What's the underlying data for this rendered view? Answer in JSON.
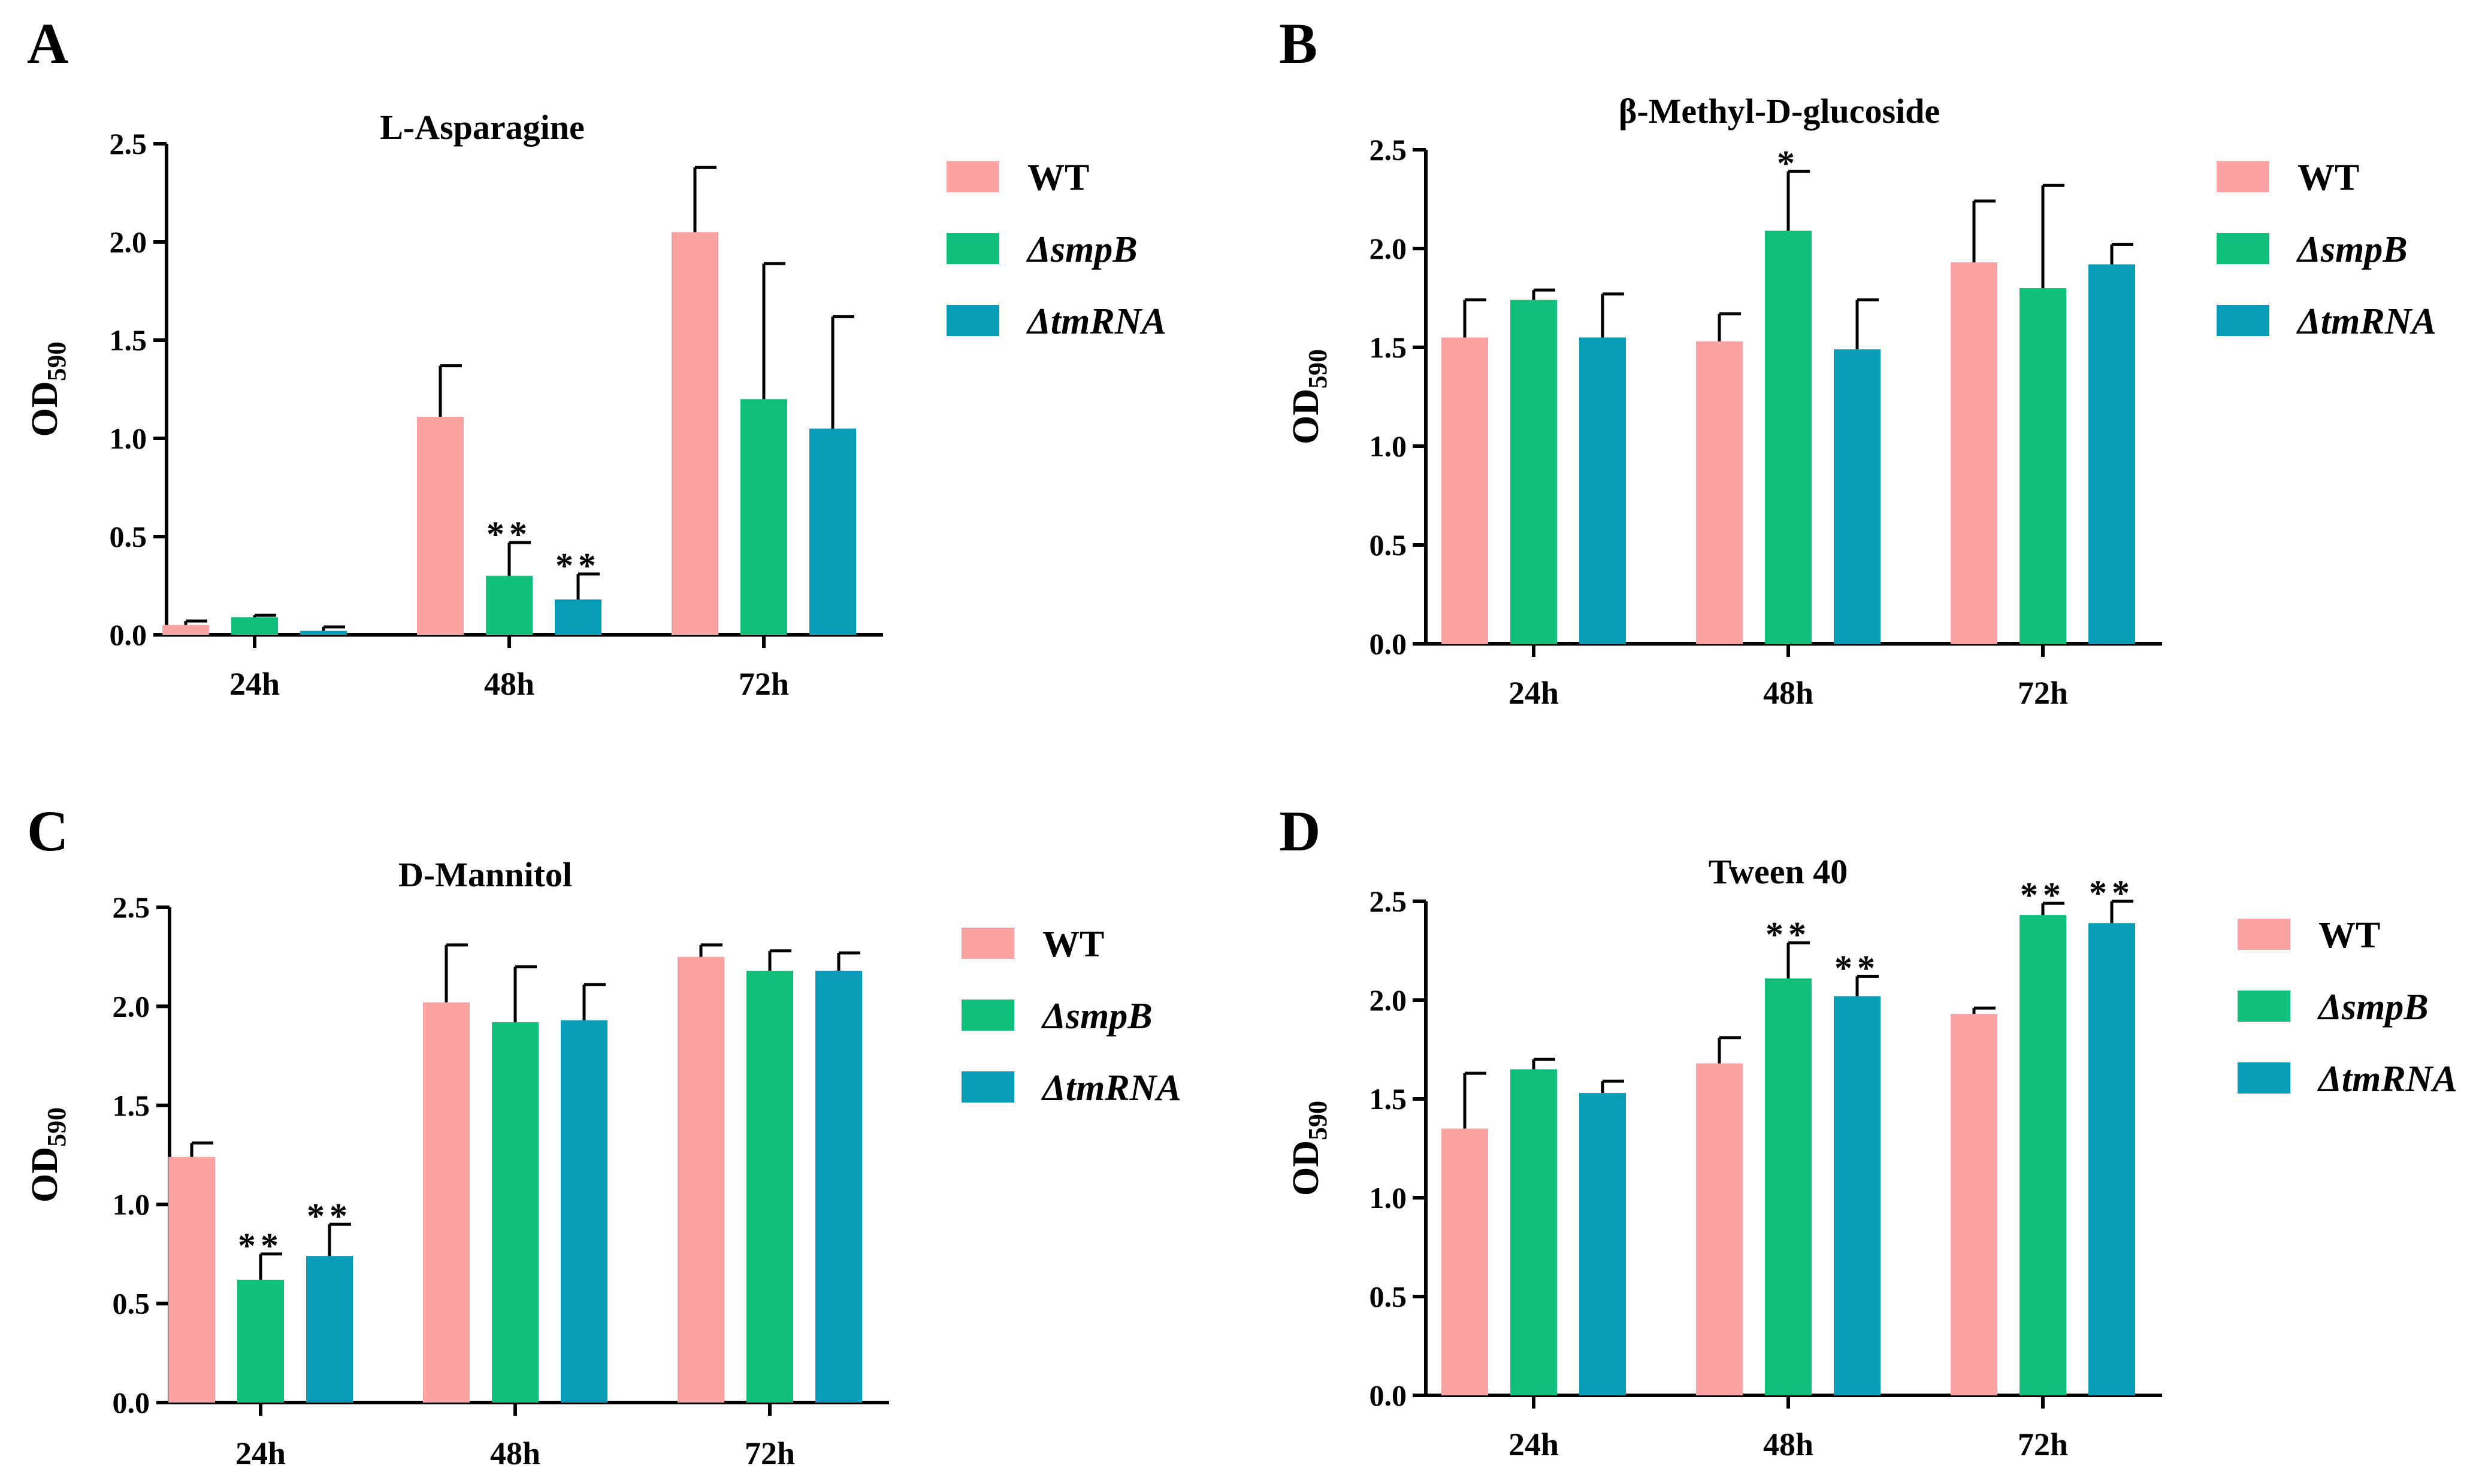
{
  "colors": {
    "WT": "#fba3a3",
    "smpB": "#10c07a",
    "tmRNA": "#079db7"
  },
  "legend_labels": [
    "WT",
    "ΔsmpB",
    "ΔtmRNA"
  ],
  "chart_data": [
    {
      "panel": "A",
      "type": "bar",
      "title": "L-Asparagine",
      "ylabel_main": "OD",
      "ylabel_sub": "590",
      "ylim": [
        0,
        2.5
      ],
      "yticks": [
        "0.0",
        "0.5",
        "1.0",
        "1.5",
        "2.0",
        "2.5"
      ],
      "categories": [
        "24h",
        "48h",
        "72h"
      ],
      "series": [
        {
          "name": "WT",
          "values": [
            0.05,
            1.11,
            2.05
          ],
          "errors": [
            0.02,
            0.26,
            0.33
          ],
          "sig": [
            "",
            "",
            ""
          ]
        },
        {
          "name": "ΔsmpB",
          "values": [
            0.09,
            0.3,
            1.2
          ],
          "errors": [
            0.01,
            0.17,
            0.69
          ],
          "sig": [
            "",
            "**",
            ""
          ]
        },
        {
          "name": "ΔtmRNA",
          "values": [
            0.02,
            0.18,
            1.05
          ],
          "errors": [
            0.02,
            0.13,
            0.57
          ],
          "sig": [
            "",
            "**",
            ""
          ]
        }
      ]
    },
    {
      "panel": "B",
      "type": "bar",
      "title": "β-Methyl-D-glucoside",
      "ylabel_main": "OD",
      "ylabel_sub": "590",
      "ylim": [
        0,
        2.5
      ],
      "yticks": [
        "0.0",
        "0.5",
        "1.0",
        "1.5",
        "2.0",
        "2.5"
      ],
      "categories": [
        "24h",
        "48h",
        "72h"
      ],
      "series": [
        {
          "name": "WT",
          "values": [
            1.55,
            1.53,
            1.93
          ],
          "errors": [
            0.19,
            0.14,
            0.31
          ],
          "sig": [
            "",
            "",
            ""
          ]
        },
        {
          "name": "ΔsmpB",
          "values": [
            1.74,
            2.09,
            1.8
          ],
          "errors": [
            0.05,
            0.3,
            0.52
          ],
          "sig": [
            "",
            "*",
            ""
          ]
        },
        {
          "name": "ΔtmRNA",
          "values": [
            1.55,
            1.49,
            1.92
          ],
          "errors": [
            0.22,
            0.25,
            0.1
          ],
          "sig": [
            "",
            "",
            ""
          ]
        }
      ]
    },
    {
      "panel": "C",
      "type": "bar",
      "title": "D-Mannitol",
      "ylabel_main": "OD",
      "ylabel_sub": "590",
      "ylim": [
        0,
        2.5
      ],
      "yticks": [
        "0.0",
        "0.5",
        "1.0",
        "1.5",
        "2.0",
        "2.5"
      ],
      "categories": [
        "24h",
        "48h",
        "72h"
      ],
      "series": [
        {
          "name": "WT",
          "values": [
            1.24,
            2.02,
            2.25
          ],
          "errors": [
            0.07,
            0.29,
            0.06
          ],
          "sig": [
            "",
            "",
            ""
          ]
        },
        {
          "name": "ΔsmpB",
          "values": [
            0.62,
            1.92,
            2.18
          ],
          "errors": [
            0.13,
            0.28,
            0.1
          ],
          "sig": [
            "**",
            "",
            ""
          ]
        },
        {
          "name": "ΔtmRNA",
          "values": [
            0.74,
            1.93,
            2.18
          ],
          "errors": [
            0.16,
            0.18,
            0.09
          ],
          "sig": [
            "**",
            "",
            ""
          ]
        }
      ]
    },
    {
      "panel": "D",
      "type": "bar",
      "title": "Tween 40",
      "ylabel_main": "OD",
      "ylabel_sub": "590",
      "ylim": [
        0,
        2.5
      ],
      "yticks": [
        "0.0",
        "0.5",
        "1.0",
        "1.5",
        "2.0",
        "2.5"
      ],
      "categories": [
        "24h",
        "48h",
        "72h"
      ],
      "series": [
        {
          "name": "WT",
          "values": [
            1.35,
            1.68,
            1.93
          ],
          "errors": [
            0.28,
            0.13,
            0.03
          ],
          "sig": [
            "",
            "",
            ""
          ]
        },
        {
          "name": "ΔsmpB",
          "values": [
            1.65,
            2.11,
            2.43
          ],
          "errors": [
            0.05,
            0.18,
            0.06
          ],
          "sig": [
            "",
            "**",
            "**"
          ]
        },
        {
          "name": "ΔtmRNA",
          "values": [
            1.53,
            2.02,
            2.39
          ],
          "errors": [
            0.06,
            0.1,
            0.11
          ],
          "sig": [
            "",
            "**",
            "**"
          ]
        }
      ]
    }
  ]
}
